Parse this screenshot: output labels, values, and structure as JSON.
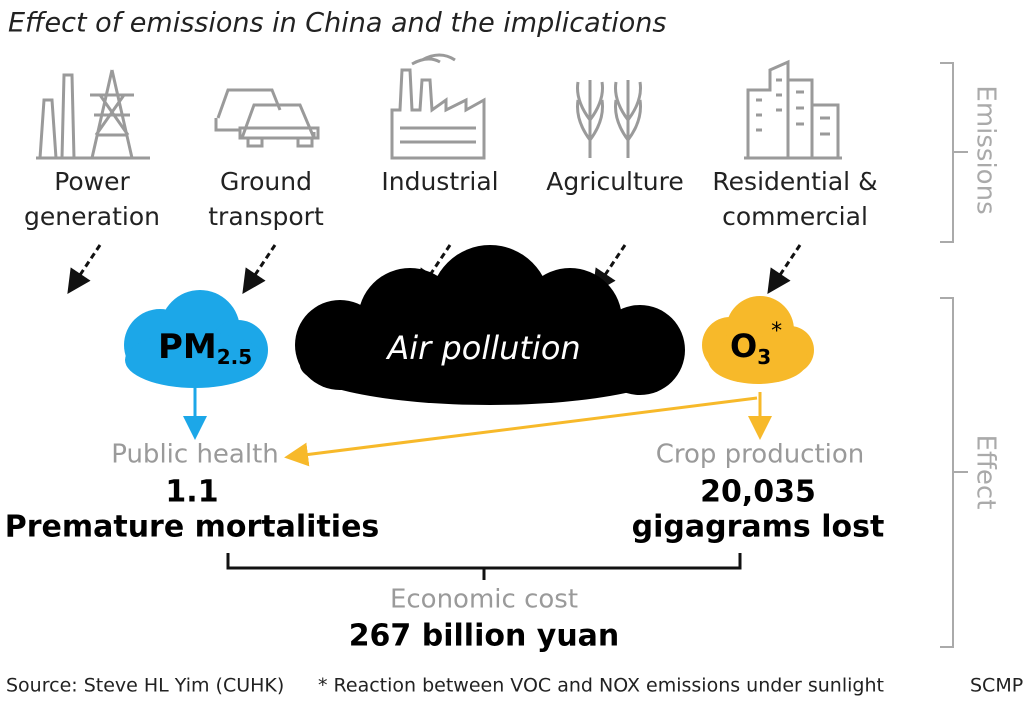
{
  "title": "Effect of emissions in China and the implications",
  "sections": {
    "emissions": "Emissions",
    "effect": "Effect"
  },
  "sources": [
    {
      "lines": [
        "Power",
        "generation"
      ]
    },
    {
      "lines": [
        "Ground",
        "transport"
      ]
    },
    {
      "lines": [
        "Industrial"
      ]
    },
    {
      "lines": [
        "Agriculture"
      ]
    },
    {
      "lines": [
        "Residential &",
        "commercial"
      ]
    }
  ],
  "pollutants": {
    "pm": {
      "symbol": "PM",
      "subscript": "2.5"
    },
    "air": {
      "label": "Air pollution"
    },
    "ozone": {
      "symbol": "O",
      "subscript": "3",
      "note_mark": "*"
    }
  },
  "outcomes": [
    {
      "label": "Public health",
      "figure": "1.1",
      "unit": "Premature mortalities"
    },
    {
      "label": "Crop production",
      "figure": "20,035",
      "unit": "gigagrams lost"
    }
  ],
  "economic": {
    "label": "Economic cost",
    "figure": "267 billion yuan"
  },
  "footer": {
    "source": "Source: Steve HL Yim (CUHK)",
    "note": "* Reaction between VOC and NOX emissions under sunlight",
    "credit": "SCMP"
  }
}
